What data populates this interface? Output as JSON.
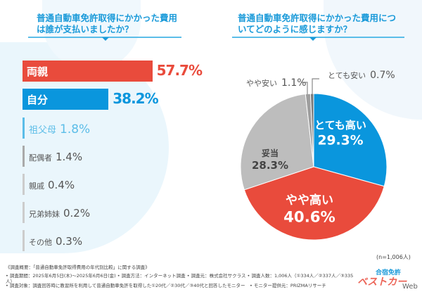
{
  "chart_data": [
    {
      "type": "bar",
      "orientation": "horizontal",
      "title": "普通自動車免許取得にかかった費用は誰が支払いましたか？",
      "categories": [
        "両親",
        "自分",
        "祖父母",
        "配偶者",
        "親戚",
        "兄弟姉妹",
        "その他"
      ],
      "values": [
        57.7,
        38.2,
        1.8,
        1.4,
        0.4,
        0.2,
        0.3
      ],
      "value_labels": [
        "57.7%",
        "38.2%",
        "1.8%",
        "1.4%",
        "0.4%",
        "0.2%",
        "0.3%"
      ],
      "colors": [
        "#e94b3c",
        "#0a96dd",
        "#5bbde8",
        "#aaaaaa",
        "#cccccc",
        "#cccccc",
        "#cccccc"
      ]
    },
    {
      "type": "pie",
      "title": "普通自動車免許取得にかかった費用についてどのように感じますか？",
      "categories": [
        "とても高い",
        "やや高い",
        "妥当",
        "やや安い",
        "とても安い"
      ],
      "values": [
        29.3,
        40.6,
        28.3,
        1.1,
        0.7
      ],
      "value_labels": [
        "29.3%",
        "40.6%",
        "28.3%",
        "1.1%",
        "0.7%"
      ],
      "colors": [
        "#0a96dd",
        "#e94b3c",
        "#bdbdbd",
        "#9e9e9e",
        "#7a7a7a"
      ],
      "start": "top",
      "direction": "clockwise",
      "note": "(n=1,006人)"
    }
  ],
  "footer": [
    "《調査概要：「普通自動車免許取得費用の年代別比較」に関する調査》",
    "• 調査期間：2025年6月5日(木)〜2025年6月6日(金) • 調査方法：インターネット調査 • 調査元：株式会社サクラス • 調査人数：1,006人（①334人／②337人／③335人）",
    "• 調査対象：調査回答時に教習所を利用して普通自動車免許を取得した①20代／②30代／③40代と回答したモニター　• モニター提供元：PRIZMAリサーチ"
  ],
  "logo": {
    "text1": "合宿免許",
    "text2": "ベストカー",
    "text3": "Web"
  }
}
